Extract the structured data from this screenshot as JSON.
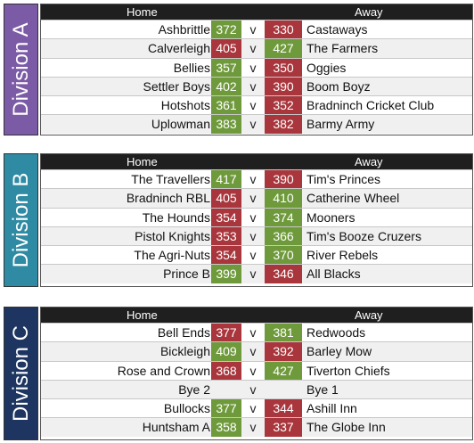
{
  "colors": {
    "win": "#6f9a3c",
    "lose": "#a8363c",
    "divA": "#7b5aa6",
    "divB": "#2f8aa3",
    "divC": "#1d3560"
  },
  "header": {
    "home": "Home",
    "away": "Away"
  },
  "divisions": [
    {
      "label": "Division A",
      "rows": [
        {
          "home": "Ashbrittle",
          "hs": "372",
          "v": "v",
          "as": "330",
          "away": "Castaways",
          "hw": true
        },
        {
          "home": "Calverleigh",
          "hs": "405",
          "v": "v",
          "as": "427",
          "away": "The Farmers",
          "hw": false
        },
        {
          "home": "Bellies",
          "hs": "357",
          "v": "v",
          "as": "350",
          "away": "Oggies",
          "hw": true
        },
        {
          "home": "Settler Boys",
          "hs": "402",
          "v": "v",
          "as": "390",
          "away": "Boom Boyz",
          "hw": true
        },
        {
          "home": "Hotshots",
          "hs": "361",
          "v": "v",
          "as": "352",
          "away": "Bradninch Cricket Club",
          "hw": true
        },
        {
          "home": "Uplowman",
          "hs": "383",
          "v": "v",
          "as": "382",
          "away": "Barmy Army",
          "hw": true
        }
      ]
    },
    {
      "label": "Division B",
      "rows": [
        {
          "home": "The Travellers",
          "hs": "417",
          "v": "v",
          "as": "390",
          "away": "Tim's Princes",
          "hw": true
        },
        {
          "home": "Bradninch RBL",
          "hs": "405",
          "v": "v",
          "as": "410",
          "away": "Catherine Wheel",
          "hw": false
        },
        {
          "home": "The Hounds",
          "hs": "354",
          "v": "v",
          "as": "374",
          "away": "Mooners",
          "hw": false
        },
        {
          "home": "Pistol Knights",
          "hs": "353",
          "v": "v",
          "as": "366",
          "away": "Tim's Booze Cruzers",
          "hw": false
        },
        {
          "home": "The Agri-Nuts",
          "hs": "354",
          "v": "v",
          "as": "370",
          "away": "River Rebels",
          "hw": false
        },
        {
          "home": "Prince B",
          "hs": "399",
          "v": "v",
          "as": "346",
          "away": "All Blacks",
          "hw": true
        }
      ]
    },
    {
      "label": "Division C",
      "rows": [
        {
          "home": "Bell Ends",
          "hs": "377",
          "v": "v",
          "as": "381",
          "away": "Redwoods",
          "hw": false
        },
        {
          "home": "Bickleigh",
          "hs": "409",
          "v": "v",
          "as": "392",
          "away": "Barley Mow",
          "hw": true
        },
        {
          "home": "Rose and Crown",
          "hs": "368",
          "v": "v",
          "as": "427",
          "away": "Tiverton Chiefs",
          "hw": false
        },
        {
          "home": "Bye 2",
          "hs": "",
          "v": "v",
          "as": "",
          "away": "Bye 1",
          "hw": null
        },
        {
          "home": "Bullocks",
          "hs": "377",
          "v": "v",
          "as": "344",
          "away": "Ashill Inn",
          "hw": true
        },
        {
          "home": "Huntsham A",
          "hs": "358",
          "v": "v",
          "as": "337",
          "away": "The Globe Inn",
          "hw": true
        }
      ]
    }
  ]
}
